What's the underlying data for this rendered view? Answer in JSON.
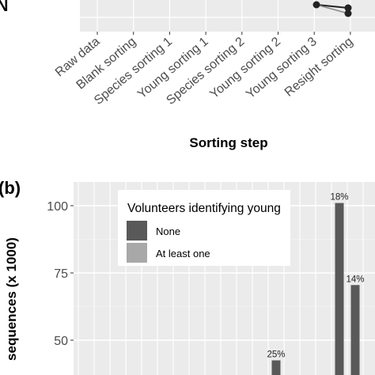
{
  "chart_data": [
    {
      "panel": "a",
      "type": "line",
      "panel_label_fragment": "N",
      "xlabel": "Sorting step",
      "categories": [
        "Raw data",
        "Blank sorting",
        "Species sorting 1",
        "Young sorting 1",
        "Species sorting 2",
        "Young sorting 2",
        "Young sorting 3",
        "Resight sorting"
      ],
      "grid": true,
      "note": "only the bottom edge of this panel is visible; y-axis values are cut off"
    },
    {
      "panel": "b",
      "type": "bar",
      "panel_label": "(b)",
      "ylabel": "sequences (x 1000)",
      "y_ticks": [
        50,
        75,
        100
      ],
      "ylim": [
        42,
        108
      ],
      "grid": true,
      "legend": {
        "title": "Volunteers identifying young",
        "position": "top-center",
        "items": [
          {
            "label": "None",
            "color": "#595959"
          },
          {
            "label": "At least one",
            "color": "#a8a8a8"
          }
        ]
      },
      "bars": [
        {
          "slot": 12,
          "series": "None",
          "value": 42.5,
          "label": "25%"
        },
        {
          "slot": 16,
          "series": "None",
          "value": 101,
          "label": "18%"
        },
        {
          "slot": 17,
          "series": "None",
          "value": 70.5,
          "label": "14%"
        }
      ]
    }
  ],
  "colors": {
    "panel_bg": "#ebebeb",
    "grid": "#ffffff",
    "bar_none": "#595959",
    "bar_at_least_one": "#a8a8a8"
  }
}
